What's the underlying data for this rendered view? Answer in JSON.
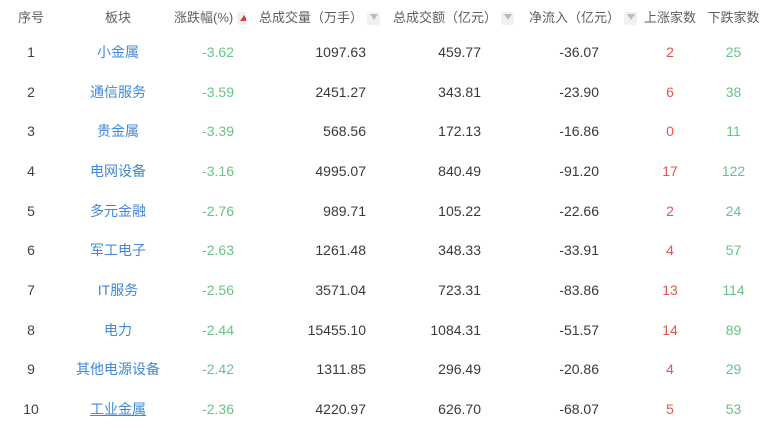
{
  "table": {
    "columns": [
      {
        "key": "rank",
        "label": "序号",
        "sort": "none"
      },
      {
        "key": "sector",
        "label": "板块",
        "sort": "none"
      },
      {
        "key": "change",
        "label": "涨跌幅(%)",
        "sort": "asc"
      },
      {
        "key": "volume",
        "label": "总成交量（万手）",
        "sort": "sortable"
      },
      {
        "key": "turnover",
        "label": "总成交额（亿元）",
        "sort": "sortable"
      },
      {
        "key": "netflow",
        "label": "净流入（亿元）",
        "sort": "sortable"
      },
      {
        "key": "gainers",
        "label": "上涨家数",
        "sort": "none"
      },
      {
        "key": "losers",
        "label": "下跌家数",
        "sort": "none"
      }
    ],
    "rows": [
      {
        "rank": "1",
        "sector": "小金属",
        "change": "-3.62",
        "volume": "1097.63",
        "turnover": "459.77",
        "netflow": "-36.07",
        "gainers": "2",
        "losers": "25",
        "hovered": false
      },
      {
        "rank": "2",
        "sector": "通信服务",
        "change": "-3.59",
        "volume": "2451.27",
        "turnover": "343.81",
        "netflow": "-23.90",
        "gainers": "6",
        "losers": "38",
        "hovered": false
      },
      {
        "rank": "3",
        "sector": "贵金属",
        "change": "-3.39",
        "volume": "568.56",
        "turnover": "172.13",
        "netflow": "-16.86",
        "gainers": "0",
        "losers": "11",
        "hovered": false
      },
      {
        "rank": "4",
        "sector": "电网设备",
        "change": "-3.16",
        "volume": "4995.07",
        "turnover": "840.49",
        "netflow": "-91.20",
        "gainers": "17",
        "losers": "122",
        "hovered": false
      },
      {
        "rank": "5",
        "sector": "多元金融",
        "change": "-2.76",
        "volume": "989.71",
        "turnover": "105.22",
        "netflow": "-22.66",
        "gainers": "2",
        "losers": "24",
        "hovered": false
      },
      {
        "rank": "6",
        "sector": "军工电子",
        "change": "-2.63",
        "volume": "1261.48",
        "turnover": "348.33",
        "netflow": "-33.91",
        "gainers": "4",
        "losers": "57",
        "hovered": false
      },
      {
        "rank": "7",
        "sector": "IT服务",
        "change": "-2.56",
        "volume": "3571.04",
        "turnover": "723.31",
        "netflow": "-83.86",
        "gainers": "13",
        "losers": "114",
        "hovered": false
      },
      {
        "rank": "8",
        "sector": "电力",
        "change": "-2.44",
        "volume": "15455.10",
        "turnover": "1084.31",
        "netflow": "-51.57",
        "gainers": "14",
        "losers": "89",
        "hovered": false
      },
      {
        "rank": "9",
        "sector": "其他电源设备",
        "change": "-2.42",
        "volume": "1311.85",
        "turnover": "296.49",
        "netflow": "-20.86",
        "gainers": "4",
        "losers": "29",
        "hovered": false
      },
      {
        "rank": "10",
        "sector": "工业金属",
        "change": "-2.36",
        "volume": "4220.97",
        "turnover": "626.70",
        "netflow": "-68.07",
        "gainers": "5",
        "losers": "53",
        "hovered": true
      }
    ]
  },
  "colors": {
    "sector_link_blue": "#4189d6",
    "down_green": "#69c287",
    "up_red": "#e2574d",
    "sort_active_red": "#d8433b",
    "header_text": "#5e5e5e"
  }
}
